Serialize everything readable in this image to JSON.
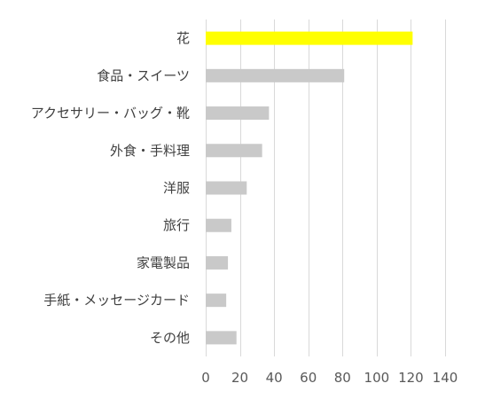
{
  "chart_data": {
    "type": "bar",
    "orientation": "horizontal",
    "categories": [
      "花",
      "食品・スイーツ",
      "アクセサリー・バッグ・靴",
      "外食・手料理",
      "洋服",
      "旅行",
      "家電製品",
      "手紙・メッセージカード",
      "その他"
    ],
    "values": [
      121,
      81,
      37,
      33,
      24,
      15,
      13,
      12,
      18
    ],
    "highlight_index": 0,
    "colors": {
      "highlight": "#ffff00",
      "bar": "#c9c9c9",
      "grid": "#d9d9d9",
      "text": "#404040"
    },
    "x_ticks": [
      0,
      20,
      40,
      60,
      80,
      100,
      120,
      140
    ],
    "xlim": [
      0,
      140
    ],
    "grid": true,
    "legend": "none"
  }
}
